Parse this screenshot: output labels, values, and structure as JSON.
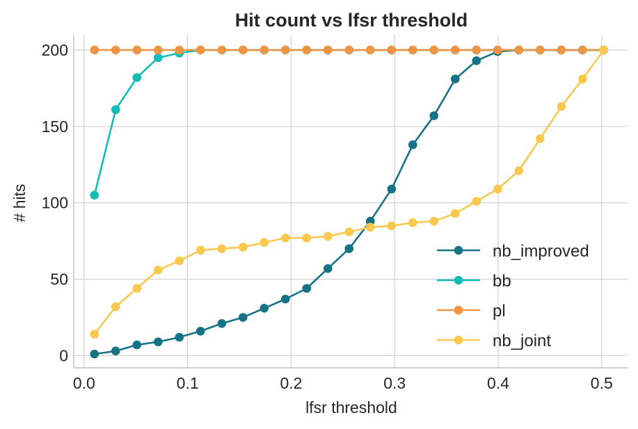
{
  "chart_data": {
    "type": "line",
    "title": "Hit count vs lfsr threshold",
    "xlabel": "lfsr threshold",
    "ylabel": "# hits",
    "xlim": [
      -0.01,
      0.525
    ],
    "ylim": [
      -8,
      210
    ],
    "xticks": [
      0.0,
      0.1,
      0.2,
      0.3,
      0.4,
      0.5
    ],
    "xtick_labels": [
      "0.0",
      "0.1",
      "0.2",
      "0.3",
      "0.4",
      "0.5"
    ],
    "yticks": [
      0,
      50,
      100,
      150,
      200
    ],
    "ytick_labels": [
      "0",
      "50",
      "100",
      "150",
      "200"
    ],
    "grid": true,
    "legend_position": "lower-right",
    "x": [
      0.01,
      0.0305,
      0.051,
      0.0715,
      0.092,
      0.1125,
      0.133,
      0.1535,
      0.174,
      0.1945,
      0.215,
      0.2355,
      0.256,
      0.2765,
      0.297,
      0.3175,
      0.338,
      0.3585,
      0.379,
      0.3995,
      0.42,
      0.4405,
      0.461,
      0.4815,
      0.502
    ],
    "series": [
      {
        "name": "nb_improved",
        "color": "#167385",
        "values": [
          1,
          3,
          7,
          9,
          12,
          16,
          21,
          25,
          31,
          37,
          44,
          57,
          70,
          88,
          109,
          138,
          157,
          181,
          193,
          199,
          200,
          200,
          200,
          200,
          200
        ]
      },
      {
        "name": "bb",
        "color": "#13bdb5",
        "values": [
          105,
          161,
          182,
          195,
          198,
          200,
          200,
          200,
          200,
          200,
          200,
          200,
          200,
          200,
          200,
          200,
          200,
          200,
          200,
          200,
          200,
          200,
          200,
          200,
          200
        ]
      },
      {
        "name": "pl",
        "color": "#ef9443",
        "values": [
          200,
          200,
          200,
          200,
          200,
          200,
          200,
          200,
          200,
          200,
          200,
          200,
          200,
          200,
          200,
          200,
          200,
          200,
          200,
          200,
          200,
          200,
          200,
          200,
          200
        ]
      },
      {
        "name": "nb_joint",
        "color": "#f8c94e",
        "values": [
          14,
          32,
          44,
          56,
          62,
          69,
          70,
          71,
          74,
          77,
          77,
          78,
          81,
          84,
          85,
          87,
          88,
          93,
          101,
          109,
          121,
          142,
          163,
          181,
          200
        ]
      }
    ]
  }
}
